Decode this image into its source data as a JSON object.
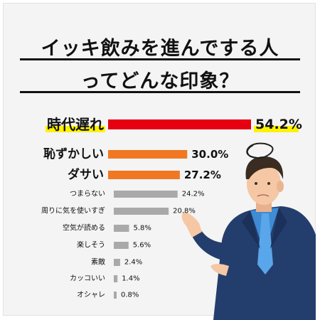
{
  "title_line1": "イッキ飲みを進んでする人",
  "title_line2": "ってどんな印象？",
  "colors": {
    "top": "#e60012",
    "second": "#f07822",
    "rest": "#a9a9a9",
    "highlight": "#fff200",
    "skin": "#f6c7a4",
    "suit": "#233e6d",
    "shirt": "#3f8bd4",
    "tie": "#3b8fd9",
    "hair": "#3a2c20"
  },
  "chart_data": {
    "type": "bar",
    "orientation": "horizontal",
    "categories": [
      "時代遅れ",
      "恥ずかしい",
      "ダサい",
      "つまらない",
      "周りに気を使いすぎ",
      "空気が読める",
      "楽しそう",
      "素敵",
      "カッコいい",
      "オシャレ"
    ],
    "values": [
      54.2,
      30.0,
      27.2,
      24.2,
      20.8,
      5.8,
      5.6,
      2.4,
      1.4,
      0.8
    ],
    "value_labels": [
      "54.2%",
      "30.0%",
      "27.2%",
      "24.2%",
      "20.8%",
      "5.8%",
      "5.6%",
      "2.4%",
      "1.4%",
      "0.8%"
    ],
    "unit": "%",
    "title": "イッキ飲みを進んでする人ってどんな印象？",
    "xlabel": "",
    "ylabel": "",
    "grid": false,
    "legend": "none"
  }
}
